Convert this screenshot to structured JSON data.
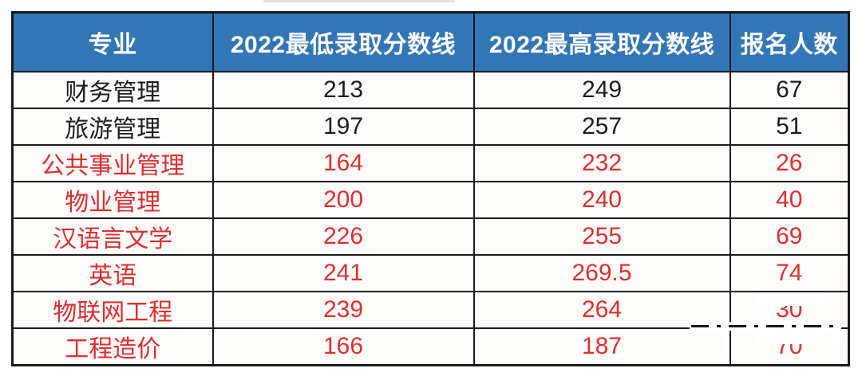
{
  "table": {
    "columns": [
      "专业",
      "2022最低录取分数线",
      "2022最高录取分数线",
      "报名人数"
    ],
    "rows": [
      {
        "major": "财务管理",
        "min": "213",
        "max": "249",
        "applicants": "67",
        "highlight": false
      },
      {
        "major": "旅游管理",
        "min": "197",
        "max": "257",
        "applicants": "51",
        "highlight": false
      },
      {
        "major": "公共事业管理",
        "min": "164",
        "max": "232",
        "applicants": "26",
        "highlight": true
      },
      {
        "major": "物业管理",
        "min": "200",
        "max": "240",
        "applicants": "40",
        "highlight": true
      },
      {
        "major": "汉语言文学",
        "min": "226",
        "max": "255",
        "applicants": "69",
        "highlight": true
      },
      {
        "major": "英语",
        "min": "241",
        "max": "269.5",
        "applicants": "74",
        "highlight": true
      },
      {
        "major": "物联网工程",
        "min": "239",
        "max": "264",
        "applicants": "30",
        "highlight": true,
        "applicants_partially_hidden": true
      },
      {
        "major": "工程造价",
        "min": "166",
        "max": "187",
        "applicants": "70",
        "highlight": true,
        "applicants_partially_hidden": true
      }
    ],
    "colors": {
      "header_bg": "#3376B6",
      "header_text": "#FFFFFF",
      "body_text": "#1D1D1D",
      "highlight_text": "#DE2F2F",
      "border": "#1A1A1A"
    }
  }
}
